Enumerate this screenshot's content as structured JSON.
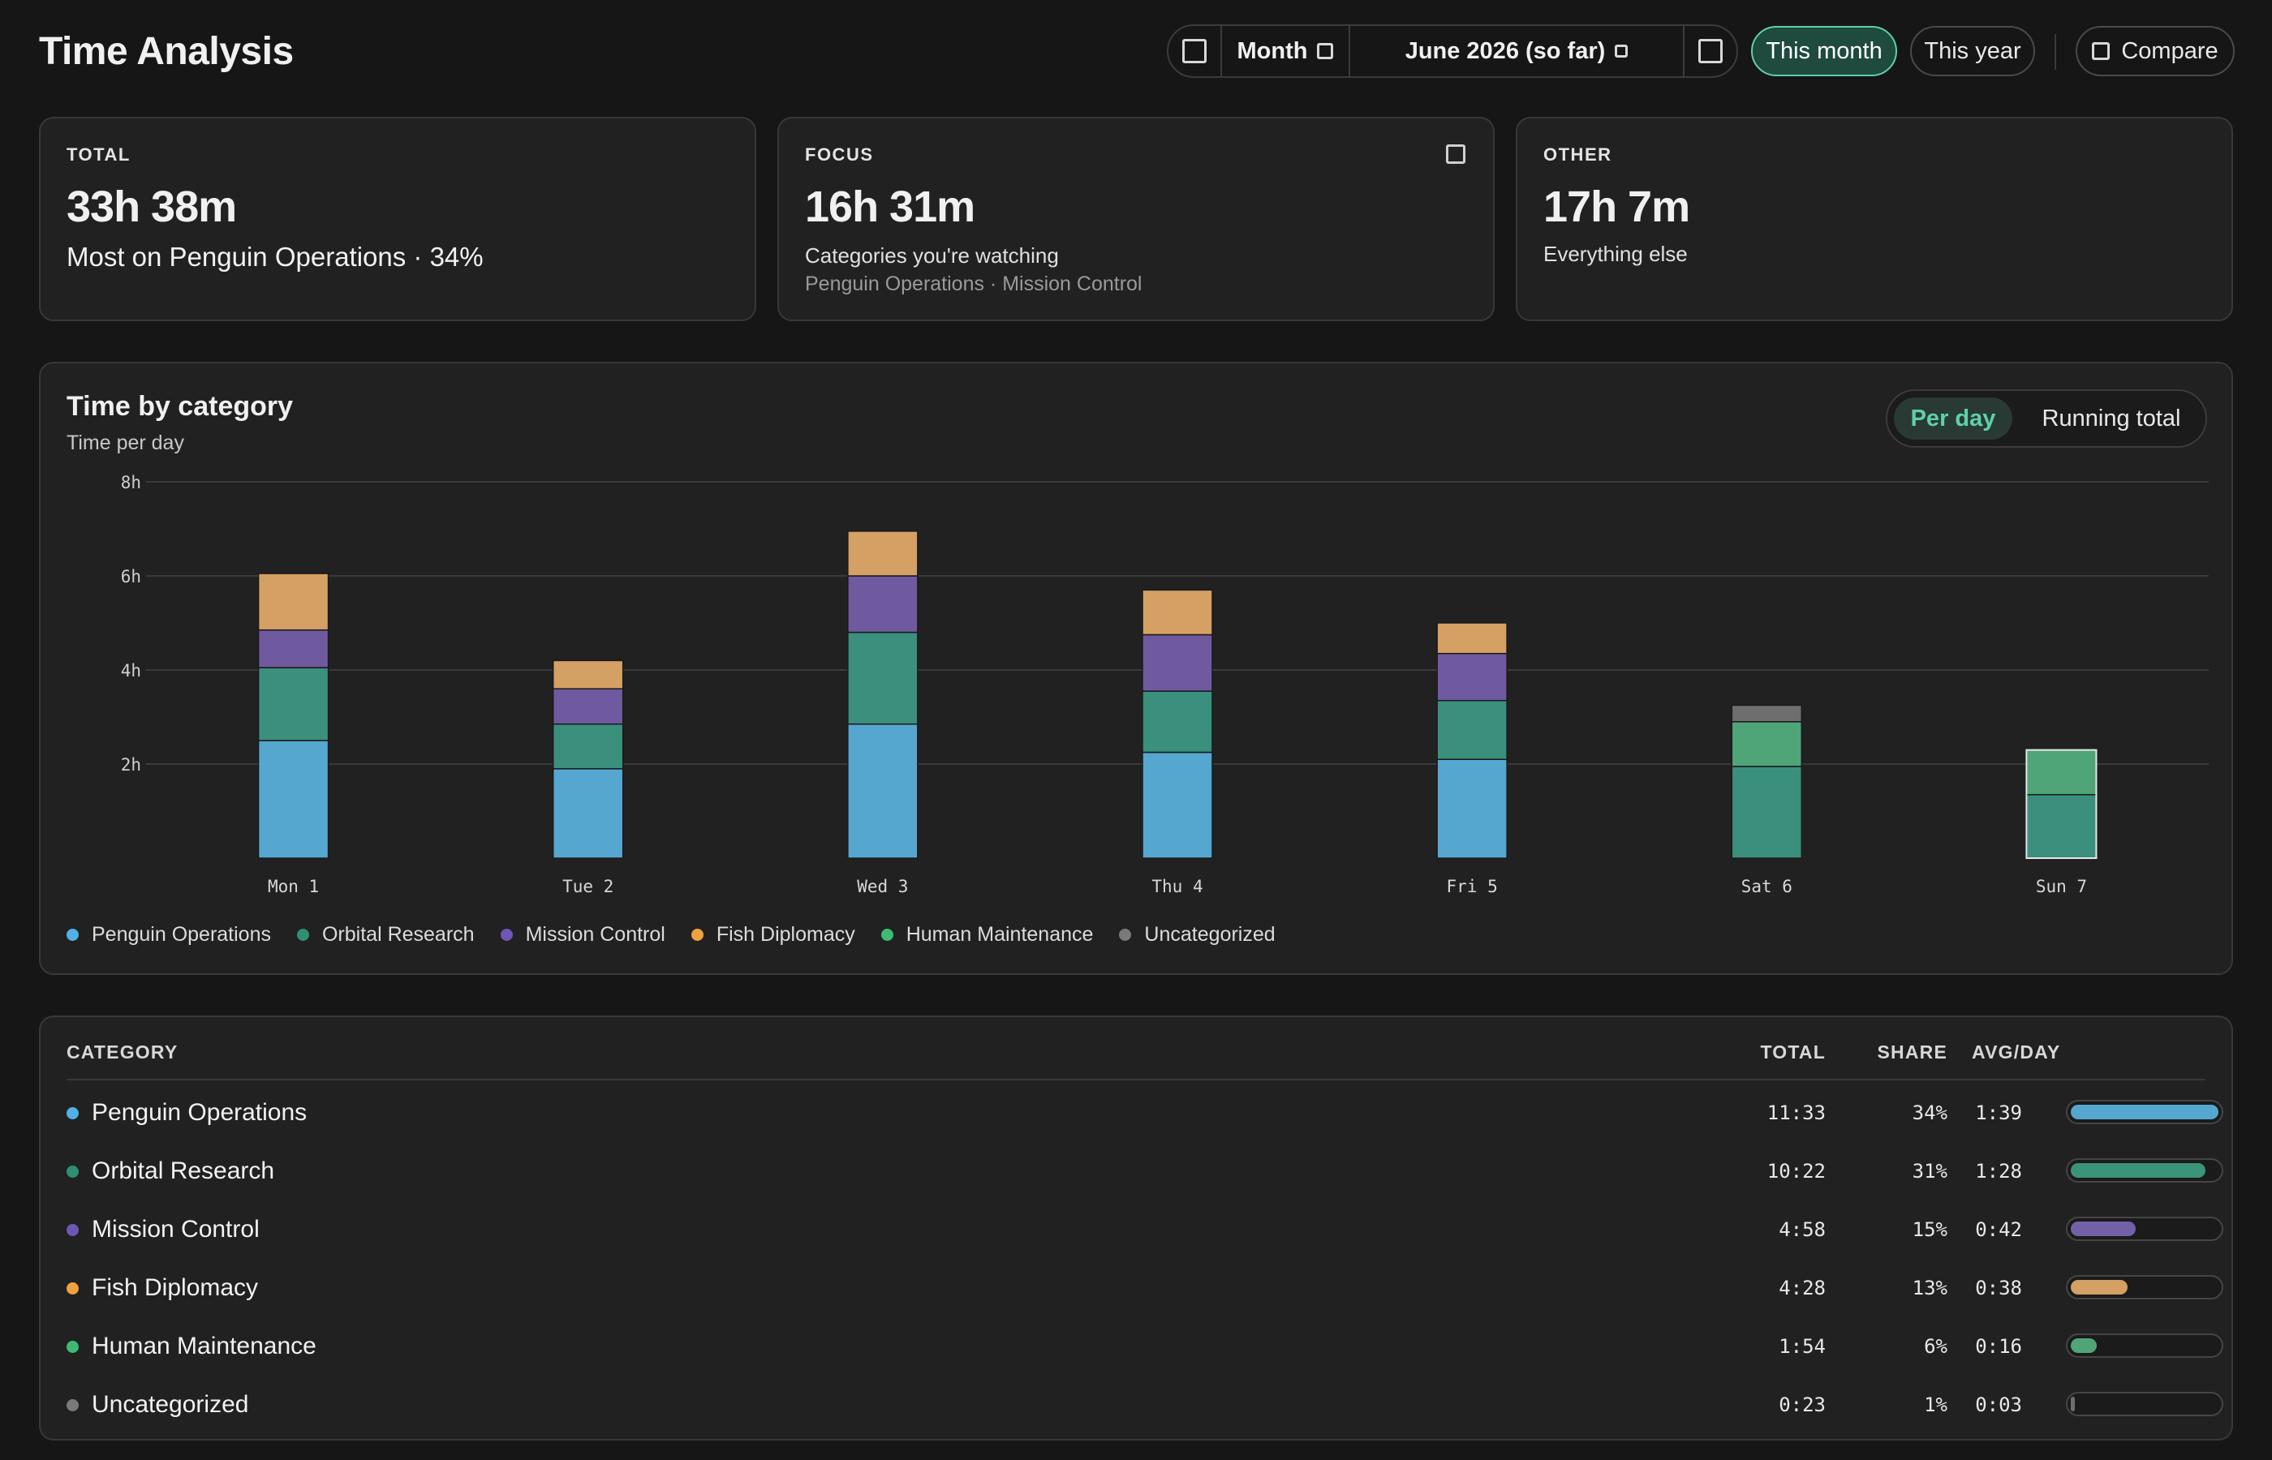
{
  "page": {
    "title": "Time Analysis"
  },
  "toolbar": {
    "mode_label": "Month",
    "period_label": "June 2026 (so far)",
    "presets": [
      {
        "label": "This month",
        "active": true
      },
      {
        "label": "This year",
        "active": false
      }
    ],
    "compare_label": "Compare"
  },
  "stats": {
    "total": {
      "label": "TOTAL",
      "value": "33h 38m",
      "note": "Most on Penguin Operations · 34%"
    },
    "focus": {
      "label": "FOCUS",
      "value": "16h 31m",
      "sub": "Categories you're watching",
      "categories": "Penguin Operations · Mission Control"
    },
    "other": {
      "label": "OTHER",
      "value": "17h 7m",
      "sub": "Everything else"
    }
  },
  "chart": {
    "title": "Time by category",
    "subtitle": "Time per day",
    "toggle": {
      "per_day": "Per day",
      "running_total": "Running total",
      "active": "per_day"
    }
  },
  "chart_data": {
    "type": "bar",
    "stacked": true,
    "unit": "hours",
    "categories": [
      "Mon 1",
      "Tue 2",
      "Wed 3",
      "Thu 4",
      "Fri 5",
      "Sat 6",
      "Sun 7"
    ],
    "y_ticks": [
      {
        "value": 2,
        "label": "2h"
      },
      {
        "value": 4,
        "label": "4h"
      },
      {
        "value": 6,
        "label": "6h"
      },
      {
        "value": 8,
        "label": "8h"
      }
    ],
    "ylim": [
      0,
      8
    ],
    "grid": true,
    "legend_position": "bottom-left",
    "highlighted_category": "Sun 7",
    "series": [
      {
        "name": "Penguin Operations",
        "color": "#56a7cf",
        "values": [
          2.5,
          1.9,
          2.85,
          2.25,
          2.1,
          0,
          0
        ]
      },
      {
        "name": "Orbital Research",
        "color": "#3b8f7d",
        "values": [
          1.55,
          0.95,
          1.95,
          1.3,
          1.25,
          1.95,
          1.35
        ]
      },
      {
        "name": "Mission Control",
        "color": "#6f5aa0",
        "values": [
          0.8,
          0.75,
          1.2,
          1.2,
          1.0,
          0,
          0
        ]
      },
      {
        "name": "Fish Diplomacy",
        "color": "#d4a063",
        "values": [
          1.2,
          0.6,
          0.95,
          0.95,
          0.65,
          0,
          0
        ]
      },
      {
        "name": "Human Maintenance",
        "color": "#4fa578",
        "values": [
          0,
          0,
          0,
          0,
          0,
          0.95,
          0.95
        ]
      },
      {
        "name": "Uncategorized",
        "color": "#6e6e6e",
        "values": [
          0,
          0,
          0,
          0,
          0,
          0.35,
          0
        ]
      }
    ]
  },
  "legend": [
    {
      "label": "Penguin Operations",
      "color": "#4fb1e6"
    },
    {
      "label": "Orbital Research",
      "color": "#2f8f73"
    },
    {
      "label": "Mission Control",
      "color": "#6d56b6"
    },
    {
      "label": "Fish Diplomacy",
      "color": "#f0a23e"
    },
    {
      "label": "Human Maintenance",
      "color": "#3dbb72"
    },
    {
      "label": "Uncategorized",
      "color": "#7a7a7a"
    }
  ],
  "table": {
    "headers": {
      "category": "CATEGORY",
      "total": "TOTAL",
      "share": "SHARE",
      "avg": "AVG/DAY"
    },
    "rows": [
      {
        "category": "Penguin Operations",
        "total": "11:33",
        "share": "34%",
        "avg": "1:39",
        "fraction": 0.34,
        "dot": "#4fb1e6",
        "bar": "#56a7cf"
      },
      {
        "category": "Orbital Research",
        "total": "10:22",
        "share": "31%",
        "avg": "1:28",
        "fraction": 0.31,
        "dot": "#2f8f73",
        "bar": "#3b9479"
      },
      {
        "category": "Mission Control",
        "total": "4:58",
        "share": "15%",
        "avg": "0:42",
        "fraction": 0.15,
        "dot": "#6d56b6",
        "bar": "#7361a8"
      },
      {
        "category": "Fish Diplomacy",
        "total": "4:28",
        "share": "13%",
        "avg": "0:38",
        "fraction": 0.13,
        "dot": "#f0a23e",
        "bar": "#d4a063"
      },
      {
        "category": "Human Maintenance",
        "total": "1:54",
        "share": "6%",
        "avg": "0:16",
        "fraction": 0.06,
        "dot": "#3dbb72",
        "bar": "#4fa578"
      },
      {
        "category": "Uncategorized",
        "total": "0:23",
        "share": "1%",
        "avg": "0:03",
        "fraction": 0.01,
        "dot": "#7a7a7a",
        "bar": "#6e6e6e"
      }
    ]
  }
}
